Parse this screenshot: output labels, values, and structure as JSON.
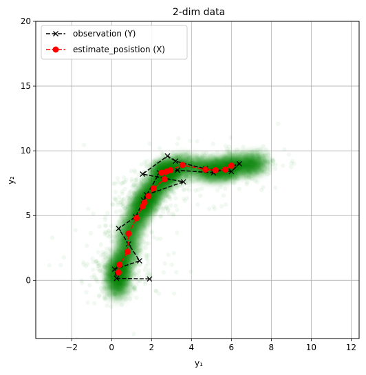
{
  "chart_data": {
    "type": "line",
    "title": "2-dim data",
    "xlabel": "y₁",
    "ylabel": "y₂",
    "xlim": [
      -3.8,
      12.4
    ],
    "ylim": [
      -4.5,
      20
    ],
    "xticks": [
      -2,
      0,
      2,
      4,
      6,
      8,
      10,
      12
    ],
    "yticks": [
      0,
      5,
      10,
      15,
      20
    ],
    "grid": true,
    "legend_position": "top-left",
    "series": [
      {
        "name": "observation (Y)",
        "color": "#000000",
        "linestyle": "dashed",
        "marker": "x",
        "x": [
          1.9,
          0.25,
          0.15,
          1.4,
          0.85,
          0.35,
          1.2,
          1.75,
          3.6,
          1.55,
          2.8,
          3.2,
          4.7,
          6.0,
          6.4,
          5.1,
          3.3,
          2.4,
          1.6
        ],
        "y": [
          0.1,
          0.15,
          0.85,
          1.5,
          2.8,
          4.0,
          4.9,
          6.6,
          7.6,
          8.2,
          9.6,
          9.2,
          8.6,
          8.4,
          9.0,
          8.3,
          8.5,
          8.3,
          6.2
        ]
      },
      {
        "name": "estimate_posistion (X)",
        "color": "#ff0000",
        "linestyle": "dashed",
        "marker": "o",
        "x": [
          0.35,
          0.4,
          0.8,
          0.85,
          1.25,
          1.55,
          1.65,
          1.85,
          2.1,
          2.65,
          2.75,
          2.5,
          2.95,
          3.55,
          4.7,
          5.2,
          5.7,
          6.0
        ],
        "y": [
          0.6,
          1.2,
          2.2,
          3.6,
          4.8,
          5.7,
          6.0,
          6.5,
          7.1,
          7.8,
          8.4,
          8.3,
          8.5,
          8.9,
          8.55,
          8.5,
          8.55,
          8.85
        ]
      }
    ]
  },
  "colors": {
    "grid": "#b0b0b0",
    "cloud": "#008000",
    "axes": "#000000"
  }
}
